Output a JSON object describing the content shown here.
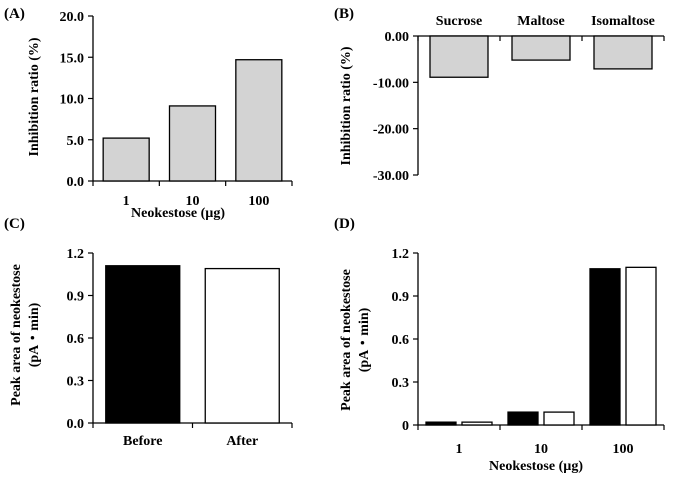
{
  "chart_data": [
    {
      "panel": "(A)",
      "type": "bar",
      "categories": [
        "1",
        "10",
        "100"
      ],
      "series": [
        {
          "values": [
            5.2,
            9.1,
            14.7
          ],
          "color": "#d3d3d3"
        }
      ],
      "ylabel": "Inhibition ratio (%)",
      "xlabel": "Neokestose (µg)",
      "ylim": [
        0,
        20
      ],
      "yticks": [
        "0.0",
        "5.0",
        "10.0",
        "15.0",
        "20.0"
      ],
      "grid": false
    },
    {
      "panel": "(B)",
      "type": "bar",
      "categories": [
        "Sucrose",
        "Maltose",
        "Isomaltose"
      ],
      "category_labels_position": "top",
      "series": [
        {
          "values": [
            -8.9,
            -5.2,
            -7.1
          ],
          "color": "#d3d3d3"
        }
      ],
      "ylabel": "Inhibition ratio (%)",
      "ylim": [
        -30,
        0
      ],
      "yticks": [
        "0.00",
        "-10.00",
        "-20.00",
        "-30.00"
      ],
      "grid": false
    },
    {
      "panel": "(C)",
      "type": "bar",
      "categories": [
        "Before",
        "After"
      ],
      "values": [
        1.11,
        1.09
      ],
      "colors": [
        "#000000",
        "#ffffff"
      ],
      "ylabel": [
        "Peak area of neokestose",
        "(pA・min)"
      ],
      "ylim": [
        0,
        1.2
      ],
      "yticks": [
        "0.0",
        "0.3",
        "0.6",
        "0.9",
        "1.2"
      ],
      "grid": false
    },
    {
      "panel": "(D)",
      "type": "bar",
      "categories": [
        "1",
        "10",
        "100"
      ],
      "series": [
        {
          "values": [
            0.02,
            0.09,
            1.09
          ],
          "color": "#000000"
        },
        {
          "values": [
            0.02,
            0.09,
            1.1
          ],
          "color": "#ffffff"
        }
      ],
      "ylabel": [
        "Peak area of neokestose",
        "(pA・min)"
      ],
      "xlabel": "Neokestose (µg)",
      "ylim": [
        0,
        1.2
      ],
      "yticks": [
        "0",
        "0.3",
        "0.6",
        "0.9",
        "1.2"
      ],
      "grid": false
    }
  ]
}
